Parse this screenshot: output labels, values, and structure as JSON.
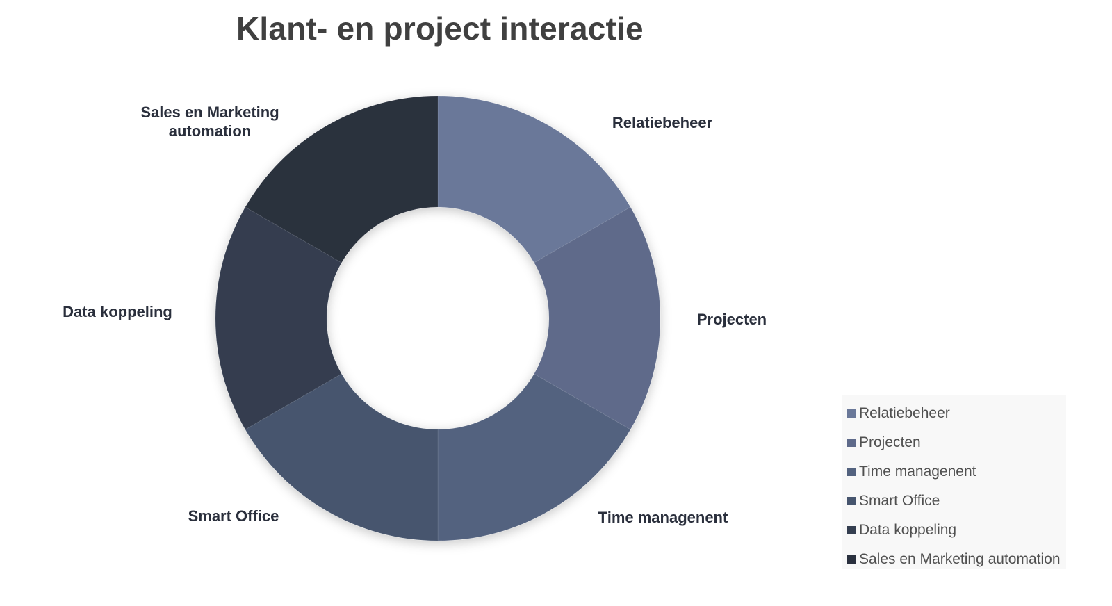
{
  "chart_data": {
    "type": "pie",
    "variant": "donut",
    "title": "Klant- en project interactie",
    "categories": [
      "Relatiebeheer",
      "Projecten",
      "Time managenent",
      "Smart Office",
      "Data koppeling",
      "Sales en Marketing automation"
    ],
    "values": [
      1,
      1,
      1,
      1,
      1,
      1
    ],
    "colors": [
      "#6a7899",
      "#5e6a8a",
      "#53627f",
      "#46556e",
      "#343e50",
      "#2a303e"
    ],
    "legend_position": "bottom-right",
    "data_labels": "category names"
  }
}
